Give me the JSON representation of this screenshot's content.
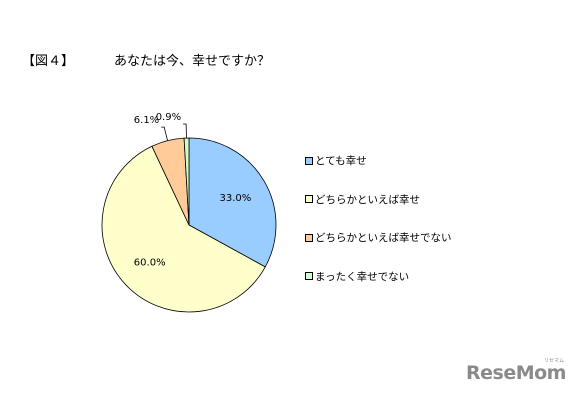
{
  "figure_label": "【図４】",
  "title": "あなたは今、幸せですか？",
  "chart_data": {
    "type": "pie",
    "categories": [
      "とても幸せ",
      "どちらかといえば幸せ",
      "どちらかといえば幸せでない",
      "まったく幸せでない"
    ],
    "values": [
      33.0,
      60.0,
      6.1,
      0.9
    ],
    "data_labels": [
      "33.0%",
      "60.0%",
      "6.1%",
      "0.9%"
    ],
    "colors": [
      "#99ccff",
      "#ffffcc",
      "#ffcc99",
      "#ccffcc"
    ],
    "start_angle_deg": 0,
    "direction": "clockwise",
    "legend_position": "right"
  },
  "logo": {
    "text": "ReseMom",
    "subtext": "リセマム"
  }
}
